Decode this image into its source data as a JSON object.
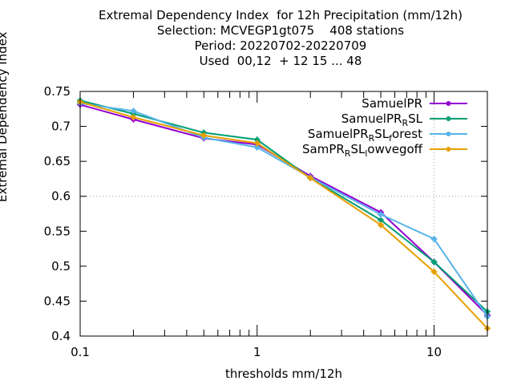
{
  "chart_data": {
    "type": "line",
    "title_lines": [
      "Extremal Dependency Index  for 12h Precipitation (mm/12h)",
      "Selection: MCVEGP1gt075    408 stations",
      "Period: 20220702-20220709",
      "Used  00,12  + 12 15 ... 48"
    ],
    "xlabel": "thresholds mm/12h",
    "ylabel": "Extremal Dependency Index",
    "x_scale": "log",
    "xlim": [
      0.1,
      20
    ],
    "ylim": [
      0.4,
      0.75
    ],
    "x_tick_labels": [
      "0.1",
      "1",
      "10"
    ],
    "y_ticks": [
      0.4,
      0.45,
      0.5,
      0.55,
      0.6,
      0.65,
      0.7,
      0.75
    ],
    "y_tick_labels": [
      "0.4",
      "0.45",
      "0.5",
      "0.55",
      "0.6",
      "0.65",
      "0.7",
      "0.75"
    ],
    "legend_position": "top-right",
    "x": [
      0.1,
      0.2,
      0.5,
      1,
      2,
      5,
      10,
      20
    ],
    "series": [
      {
        "name": "SamuelPR",
        "legend": {
          "base": "SamuelPR",
          "sub": "",
          "tail": "",
          "sub2": "",
          "tail2": ""
        },
        "color": "#9400d3",
        "values": [
          0.731,
          0.71,
          0.683,
          0.674,
          0.629,
          0.577,
          0.506,
          0.43
        ]
      },
      {
        "name": "SamuelPR_RSL",
        "legend": {
          "base": "SamuelPR",
          "sub": "R",
          "tail": "SL",
          "sub2": "",
          "tail2": ""
        },
        "color": "#009e73",
        "values": [
          0.737,
          0.718,
          0.691,
          0.681,
          0.626,
          0.566,
          0.506,
          0.435
        ]
      },
      {
        "name": "SamuelPR_RSL_forest",
        "legend": {
          "base": "SamuelPR",
          "sub": "R",
          "tail": "SL",
          "sub2": "f",
          "tail2": "orest"
        },
        "color": "#56b4e9",
        "values": [
          0.733,
          0.722,
          0.684,
          0.67,
          0.627,
          0.574,
          0.539,
          0.428
        ]
      },
      {
        "name": "SamPR_RSL_lowvegoff",
        "legend": {
          "base": "SamPR",
          "sub": "R",
          "tail": "SL",
          "sub2": "l",
          "tail2": "owvegoff"
        },
        "color": "#e69f00",
        "values": [
          0.735,
          0.713,
          0.687,
          0.676,
          0.626,
          0.559,
          0.492,
          0.411
        ]
      }
    ]
  }
}
